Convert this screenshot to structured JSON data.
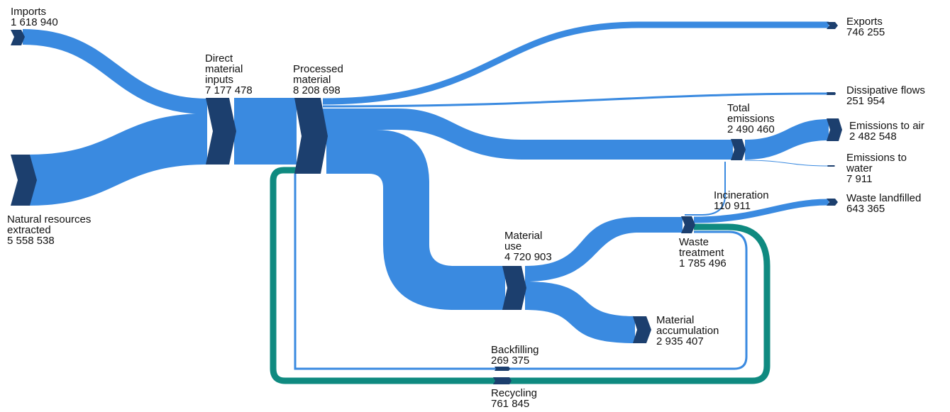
{
  "colors": {
    "flow": "#3a8ae0",
    "node": "#1c3f6e",
    "recycling": "#0f8a80",
    "background": "#ffffff"
  },
  "nodes": {
    "imports": {
      "name": "Imports",
      "value": "1 618 940"
    },
    "natural_resources": {
      "name_lines": [
        "Natural resources",
        "extracted"
      ],
      "value": "5 558 538"
    },
    "direct_material_inputs": {
      "name_lines": [
        "Direct",
        "material",
        "inputs"
      ],
      "value": "7 177 478"
    },
    "processed_material": {
      "name_lines": [
        "Processed",
        "material"
      ],
      "value": "8 208 698"
    },
    "exports": {
      "name": "Exports",
      "value": "746 255"
    },
    "dissipative_flows": {
      "name": "Dissipative flows",
      "value": "251 954"
    },
    "total_emissions": {
      "name_lines": [
        "Total",
        "emissions"
      ],
      "value": "2 490 460"
    },
    "emissions_to_air": {
      "name": "Emissions to air",
      "value": "2 482 548"
    },
    "emissions_to_water": {
      "name_lines": [
        "Emissions to",
        "water"
      ],
      "value": "7 911"
    },
    "incineration": {
      "name": "Incineration",
      "value": "110 911"
    },
    "waste_landfilled": {
      "name": "Waste landfilled",
      "value": "643 365"
    },
    "material_use": {
      "name_lines": [
        "Material",
        "use"
      ],
      "value": "4 720 903"
    },
    "waste_treatment": {
      "name_lines": [
        "Waste",
        "treatment"
      ],
      "value": "1 785 496"
    },
    "material_accumulation": {
      "name_lines": [
        "Material",
        "accumulation"
      ],
      "value": "2 935 407"
    },
    "backfilling": {
      "name": "Backfilling",
      "value": "269 375"
    },
    "recycling": {
      "name": "Recycling",
      "value": "761 845"
    }
  }
}
